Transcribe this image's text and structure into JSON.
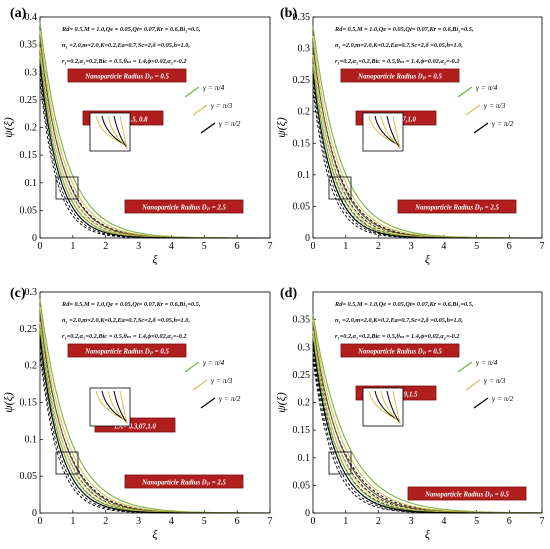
{
  "colors": {
    "pi4": "#7cb342",
    "pi3": "#d8c25a",
    "pi2": "#000000",
    "annot_fill": "#b01e1e",
    "annot_border": "#7a1010"
  },
  "chart_data": [
    {
      "panel_label": "(a)",
      "type": "line",
      "xlabel": "ξ",
      "ylabel": "ψ(ξ)",
      "xlim": [
        0,
        7
      ],
      "ylim": [
        0,
        0.4
      ],
      "xticks": [
        "0",
        "1",
        "2",
        "3",
        "4",
        "5",
        "6",
        "7"
      ],
      "yticks": [
        "0",
        "0.05",
        "0.1",
        "0.15",
        "0.2",
        "0.25",
        "0.3",
        "0.35",
        "0.4"
      ],
      "params": [
        "Rd= 0.5,M = 1.0,Qe = 0.05,Qt= 0.07,Kr = 0.6,Bi₁=0.5,",
        "n₁ =2.0,m=2.0,K=0.2,Ea=0.7,Sc=2,δ =0.05,h=1.0,",
        "r₁=0.2,α₁=0.2,Biᴄ = 0.5,θₘ = 1.4,ϕ=0.02,α₂=-0.2"
      ],
      "annotations": [
        "Nanoparticle Radius Dₚ = 0.5",
        "Biᴄ = 0.2, 0.5, 0.8",
        "Nanoparticle Radius Dₚ = 2.5"
      ],
      "legend": [
        "γ = π/4",
        "γ = π/3",
        "γ = π/2"
      ],
      "series_y0": [
        0.39,
        0.375,
        0.36,
        0.345,
        0.33,
        0.315
      ],
      "series_decay": [
        1.25,
        1.35,
        1.45,
        1.55,
        1.65,
        1.75
      ]
    },
    {
      "panel_label": "(b)",
      "type": "line",
      "xlabel": "ξ",
      "ylabel": "ψ(ξ)",
      "xlim": [
        0,
        7
      ],
      "ylim": [
        0,
        0.35
      ],
      "xticks": [
        "0",
        "1",
        "2",
        "3",
        "4",
        "5",
        "6",
        "7"
      ],
      "yticks": [
        "0",
        "0.05",
        "0.1",
        "0.15",
        "0.2",
        "0.25",
        "0.3",
        "0.35"
      ],
      "params": [
        "Rd= 0.5,M = 1.0,Qe = 0.05,Qt= 0.07,Kr = 0.6,Bi₁=0.5,",
        "n₁ =2.0,m=2.0,K=0.2,Ea=0.7,Sc=2,δ =0.05,h=1.0,",
        "r₁=0.2,α₁=0.2,Biᴄ = 0.5,θₘ = 1.4,ϕ=0.02,α₂=-0.2"
      ],
      "annotations": [
        "Nanoparticle Radius Dₚ = 0.5",
        "Kr= 0.3,07,1.0",
        "Nanoparticle Radius Dₚ = 2.5"
      ],
      "legend": [
        "γ = π/4",
        "γ = π/3",
        "γ = π/2"
      ],
      "series_y0": [
        0.335,
        0.32,
        0.305,
        0.29,
        0.275,
        0.26
      ],
      "series_decay": [
        1.2,
        1.3,
        1.4,
        1.5,
        1.6,
        1.7
      ]
    },
    {
      "panel_label": "(c)",
      "type": "line",
      "xlabel": "ξ",
      "ylabel": "ψ(ξ)",
      "xlim": [
        0,
        7
      ],
      "ylim": [
        0,
        0.3
      ],
      "xticks": [
        "0",
        "1",
        "2",
        "3",
        "4",
        "5",
        "6",
        "7"
      ],
      "yticks": [
        "0",
        "0.05",
        "0.1",
        "0.15",
        "0.2",
        "0.25",
        "0.3"
      ],
      "params": [
        "Rd= 0.5,M = 1.0,Qe = 0.05,Qt= 0.07,Kr = 0.6,Bi₁=0.5,",
        "n₁ =2.0,m=2.0,K=0.2,Ea=0.7,Sc=2,δ =0.05,h=1.0,",
        "r₁=0.2,α₁=0.2,Biᴄ = 0.5,θₘ = 1.4,ϕ=0.02,α₂=-0.2"
      ],
      "annotations": [
        "Nanoparticle Radius Dₚ = 0.5",
        "EA= 0.3,07,1.0",
        "Nanoparticle Radius Dₚ = 2.5"
      ],
      "legend": [
        "γ = π/4",
        "γ = π/3",
        "γ = π/2"
      ],
      "series_y0": [
        0.29,
        0.28,
        0.27,
        0.26,
        0.25,
        0.24
      ],
      "series_decay": [
        1.15,
        1.25,
        1.35,
        1.45,
        1.55,
        1.65
      ]
    },
    {
      "panel_label": "(d)",
      "type": "line",
      "xlabel": "ξ",
      "ylabel": "ψ(ξ)",
      "xlim": [
        0,
        7
      ],
      "ylim": [
        0,
        0.4
      ],
      "xticks": [
        "0",
        "1",
        "2",
        "3",
        "4",
        "5",
        "6",
        "7"
      ],
      "yticks": [
        "0",
        "0.05",
        "0.1",
        "0.15",
        "0.2",
        "0.25",
        "0.3",
        "0.35"
      ],
      "params": [
        "Rd= 0.5,M = 1.0,Qe = 0.05,Qt= 0.07,Kr = 0.6,Bi₁=0.5,",
        "n₁ =2.0,m=2.0,K=0.2,Ea=0.7,Sc=2,δ =0.05,h=1.0,",
        "r₁=0.2,α₁=0.2,Biᴄ = 0.5,θₘ = 1.4,ϕ=0.02,α₂=-0.2"
      ],
      "annotations": [
        "Nanoparticle Radius Dₚ = 0.5",
        "Sc = 0.6,0.9,1.5",
        "Nanoparticle Radius Dₚ = 0.5"
      ],
      "legend": [
        "γ = π/4",
        "γ = π/3",
        "γ = π/2"
      ],
      "series_y0": [
        0.36,
        0.35,
        0.34,
        0.33,
        0.32,
        0.31
      ],
      "series_decay": [
        1.0,
        1.1,
        1.2,
        1.3,
        1.4,
        1.5
      ]
    }
  ]
}
